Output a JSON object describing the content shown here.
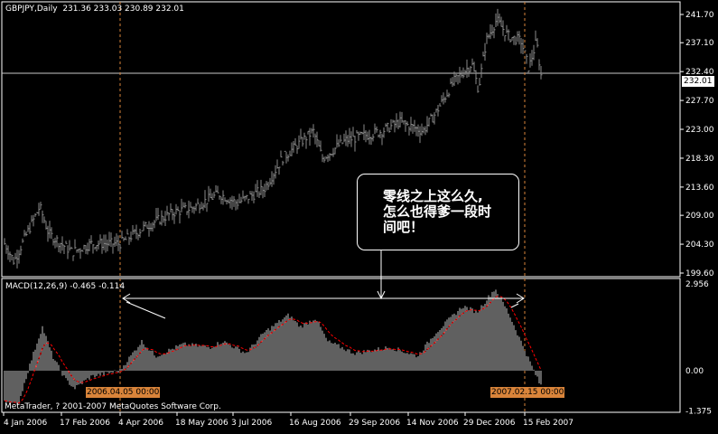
{
  "header": {
    "symbol": "GBPJPY,Daily",
    "ohlc": "231.36 233.03 230.89 232.01"
  },
  "macd_header": "MACD(12,26,9) -0.465 -0.114",
  "copyright": "MetaTrader, ? 2001-2007 MetaQuotes Software Corp.",
  "callout": {
    "line1": "零线之上这么久,",
    "line2": "怎么也得爹一段时",
    "line3": "间吧！"
  },
  "crosshair_tags": [
    "2006.04.05 00:00",
    "2007.02.15 00:00"
  ],
  "current_price": "232.01",
  "colors": {
    "bars": "#8a8a8a",
    "histogram": "#c0c0c0",
    "signal": "#ff0000",
    "crosshair": "#d9843a",
    "tag": "#d9843a"
  },
  "chart_data": [
    {
      "type": "ohlc",
      "title": "GBPJPY,Daily",
      "y_ticks": [
        "241.70",
        "237.10",
        "232.40",
        "227.70",
        "223.00",
        "218.30",
        "213.60",
        "209.00",
        "204.30",
        "199.60"
      ],
      "ylim": [
        199.6,
        241.7
      ],
      "x_ticks": [
        "4 Jan 2006",
        "17 Feb 2006",
        "4 Apr 2006",
        "18 May 2006",
        "3 Jul 2006",
        "16 Aug 2006",
        "29 Sep 2006",
        "14 Nov 2006",
        "29 Dec 2006",
        "15 Feb 2007"
      ],
      "approx_closes": [
        [
          "2006-01-05",
          204.4
        ],
        [
          "2006-01-12",
          201.5
        ],
        [
          "2006-01-22",
          206
        ],
        [
          "2006-02-01",
          210.4
        ],
        [
          "2006-02-08",
          206
        ],
        [
          "2006-02-26",
          203
        ],
        [
          "2006-03-13",
          204.4
        ],
        [
          "2006-04-04",
          204.4
        ],
        [
          "2006-04-25",
          207.3
        ],
        [
          "2006-05-16",
          209.5
        ],
        [
          "2006-05-30",
          210.2
        ],
        [
          "2006-06-20",
          212.5
        ],
        [
          "2006-07-04",
          211
        ],
        [
          "2006-07-25",
          213.3
        ],
        [
          "2006-08-08",
          218.3
        ],
        [
          "2006-09-01",
          222.7
        ],
        [
          "2006-09-08",
          218.3
        ],
        [
          "2006-09-26",
          221.2
        ],
        [
          "2006-10-24",
          222.7
        ],
        [
          "2006-11-07",
          224.2
        ],
        [
          "2006-11-25",
          222.7
        ],
        [
          "2006-12-05",
          225.7
        ],
        [
          "2006-12-19",
          230.8
        ],
        [
          "2007-01-02",
          233.7
        ],
        [
          "2007-01-07",
          229.5
        ],
        [
          "2007-01-13",
          237.4
        ],
        [
          "2007-01-21",
          240.8
        ],
        [
          "2007-01-30",
          238.2
        ],
        [
          "2007-02-09",
          237.4
        ],
        [
          "2007-02-15",
          232.9
        ],
        [
          "2007-02-21",
          237.4
        ],
        [
          "2007-02-25",
          231.0
        ]
      ]
    },
    {
      "type": "bar",
      "title": "MACD(12,26,9)",
      "y_ticks": [
        "2.956",
        "0.00",
        "-1.375"
      ],
      "ylim": [
        -1.375,
        2.956
      ],
      "approx_histogram": [
        [
          "2006-01-05",
          -1.0
        ],
        [
          "2006-01-15",
          -1.2
        ],
        [
          "2006-01-25",
          0.3
        ],
        [
          "2006-02-03",
          1.5
        ],
        [
          "2006-02-11",
          0.5
        ],
        [
          "2006-02-21",
          -0.3
        ],
        [
          "2006-02-28",
          -0.6
        ],
        [
          "2006-03-13",
          -0.2
        ],
        [
          "2006-04-04",
          0.0
        ],
        [
          "2006-04-21",
          1.0
        ],
        [
          "2006-05-02",
          0.5
        ],
        [
          "2006-05-23",
          0.9
        ],
        [
          "2006-06-13",
          0.8
        ],
        [
          "2006-06-23",
          1.0
        ],
        [
          "2006-07-11",
          0.6
        ],
        [
          "2006-07-25",
          1.3
        ],
        [
          "2006-08-13",
          1.9
        ],
        [
          "2006-08-22",
          1.5
        ],
        [
          "2006-09-03",
          1.8
        ],
        [
          "2006-09-12",
          1.0
        ],
        [
          "2006-10-03",
          0.6
        ],
        [
          "2006-10-31",
          0.8
        ],
        [
          "2006-11-21",
          0.5
        ],
        [
          "2006-12-05",
          1.3
        ],
        [
          "2006-12-26",
          2.2
        ],
        [
          "2007-01-06",
          2.0
        ],
        [
          "2007-01-20",
          2.8
        ],
        [
          "2007-01-30",
          2.0
        ],
        [
          "2007-02-13",
          0.6
        ],
        [
          "2007-02-24",
          -0.5
        ]
      ]
    }
  ]
}
